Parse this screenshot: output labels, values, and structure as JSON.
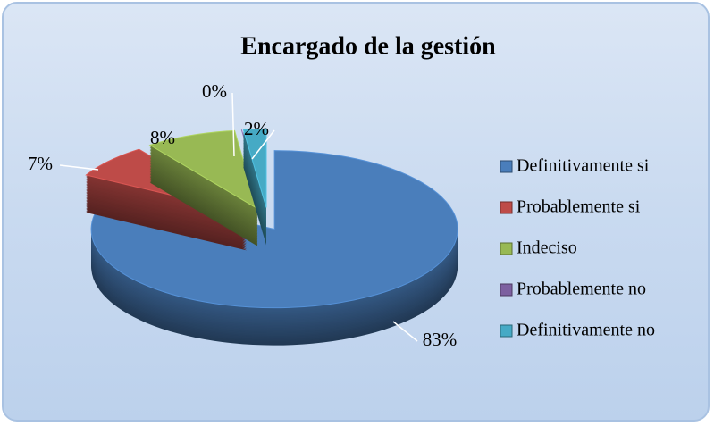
{
  "chart_data": {
    "type": "pie3d",
    "title": "Encargado de la gestión",
    "categories": [
      "Definitivamente si",
      "Probablemente si",
      "Indeciso",
      "Probablemente no",
      "Definitivamente no"
    ],
    "values": [
      83,
      7,
      8,
      0,
      2
    ],
    "value_labels": [
      "83%",
      "7%",
      "8%",
      "0%",
      "2%"
    ],
    "colors": [
      "#4a7ebb",
      "#be4b48",
      "#98b954",
      "#7d60a0",
      "#46aac5"
    ],
    "legend": "right"
  }
}
